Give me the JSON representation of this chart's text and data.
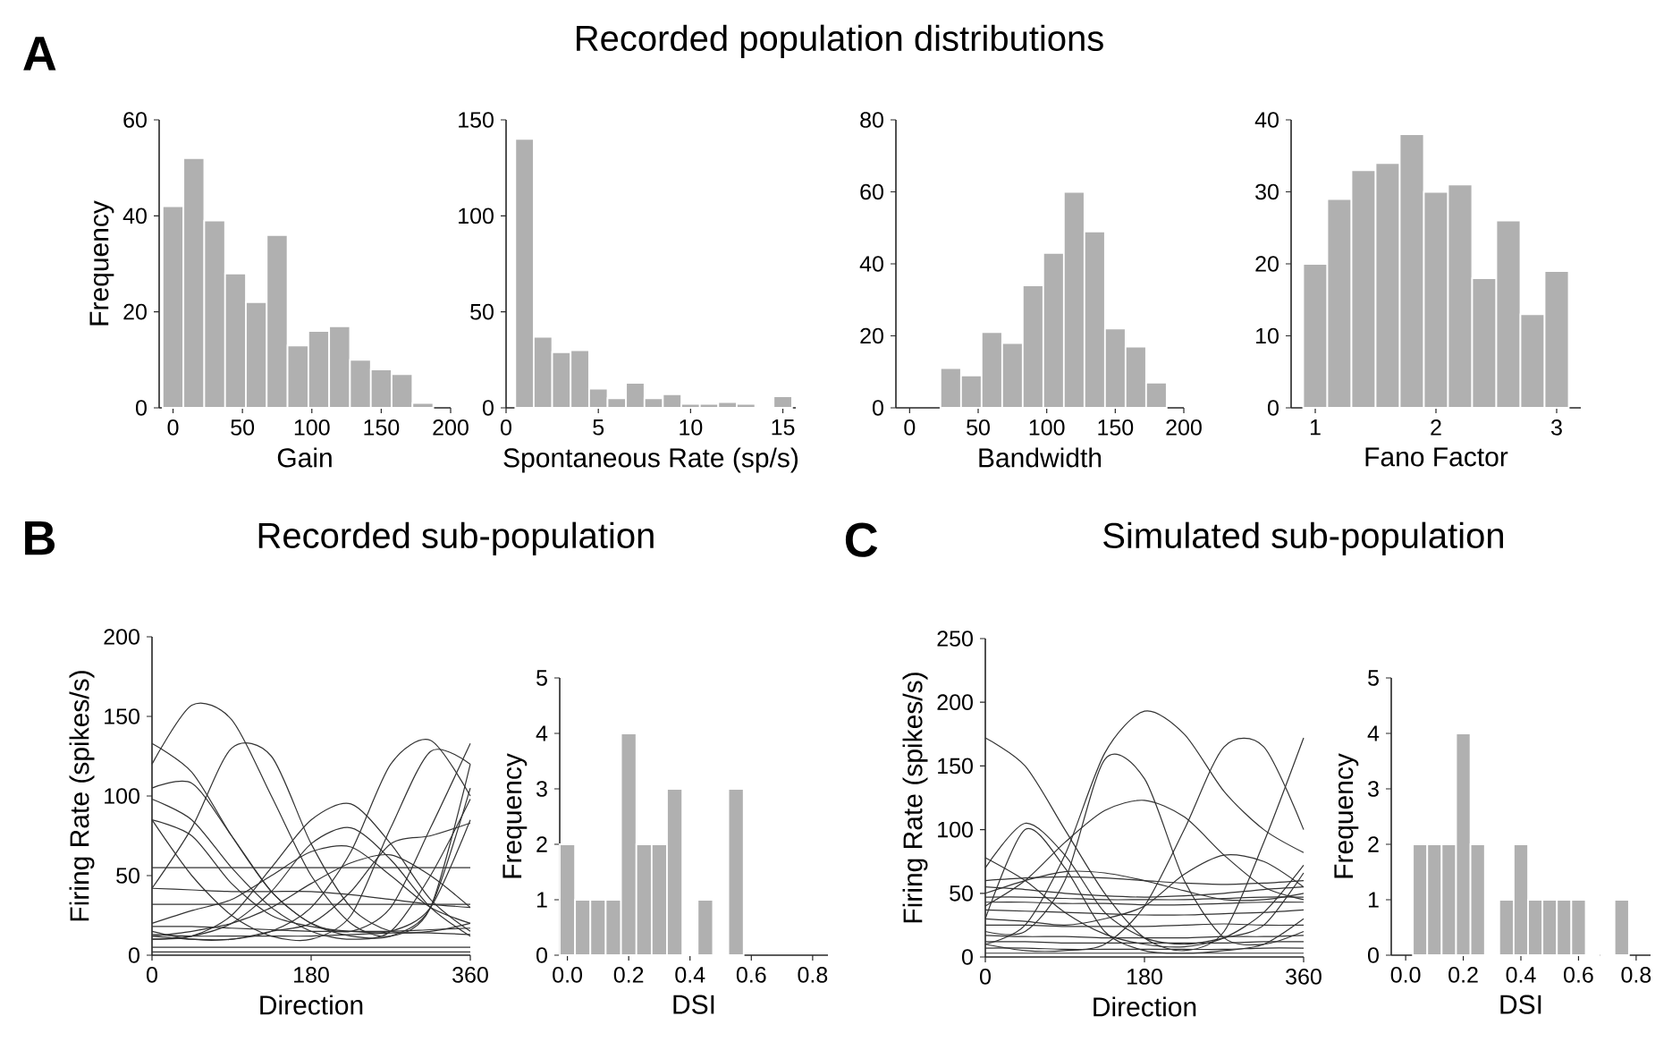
{
  "chart_data": [
    {
      "type": "histogram",
      "annotations": [
        "A"
      ],
      "xlabel": "Gain",
      "ylabel": "Frequency",
      "color": "#b0b0b0",
      "bins": [
        -7.5,
        7.5,
        22.5,
        37.5,
        52.5,
        67.5,
        82.5,
        97.5,
        112.5,
        127.5,
        142.5,
        157.5,
        172.5,
        187.5
      ],
      "values": [
        42,
        52,
        39,
        28,
        22,
        36,
        13,
        16,
        17,
        10,
        8,
        7,
        1
      ],
      "xlim": [
        -10,
        200
      ],
      "xticks": [
        0,
        50,
        100,
        150,
        200
      ],
      "ylim": [
        0,
        60
      ],
      "yticks": [
        0,
        20,
        40,
        60
      ]
    },
    {
      "type": "histogram",
      "title": "Recorded population distributions",
      "xlabel": "Spontaneous Rate (sp/s)",
      "color": "#b0b0b0",
      "bins": [
        0.5,
        1.5,
        2.5,
        3.5,
        4.5,
        5.5,
        6.5,
        7.5,
        8.5,
        9.5,
        10.5,
        11.5,
        12.5,
        13.5,
        14.5,
        15.5
      ],
      "values": [
        140,
        37,
        29,
        30,
        10,
        5,
        13,
        5,
        7,
        2,
        2,
        3,
        2,
        0,
        6
      ],
      "xlim": [
        0,
        15.7
      ],
      "xticks": [
        0,
        5,
        10,
        15
      ],
      "ylim": [
        0,
        150
      ],
      "yticks": [
        0,
        50,
        100,
        150
      ]
    },
    {
      "type": "histogram",
      "xlabel": "Bandwidth",
      "color": "#b0b0b0",
      "bins": [
        22.5,
        37.5,
        52.5,
        67.5,
        82.5,
        97.5,
        112.5,
        127.5,
        142.5,
        157.5,
        172.5,
        187.5
      ],
      "values": [
        11,
        9,
        21,
        18,
        34,
        43,
        60,
        49,
        22,
        17,
        7
      ],
      "xlim": [
        -10,
        200
      ],
      "xticks": [
        0,
        50,
        100,
        150,
        200
      ],
      "ylim": [
        0,
        80
      ],
      "yticks": [
        0,
        20,
        40,
        60,
        80
      ]
    },
    {
      "type": "histogram",
      "xlabel": "Fano Factor",
      "color": "#b0b0b0",
      "bins": [
        0.9,
        1.1,
        1.3,
        1.5,
        1.7,
        1.9,
        2.1,
        2.3,
        2.5,
        2.7,
        2.9,
        3.1
      ],
      "values": [
        20,
        29,
        33,
        34,
        38,
        30,
        31,
        18,
        26,
        13,
        19
      ],
      "xlim": [
        0.8,
        3.2
      ],
      "xticks": [
        1,
        2,
        3
      ],
      "ylim": [
        0,
        40
      ],
      "yticks": [
        0,
        10,
        20,
        30,
        40
      ]
    },
    {
      "type": "line",
      "title": "Recorded sub-population",
      "annotations": [
        "B"
      ],
      "xlabel": "Direction",
      "ylabel": "Firing Rate (spikes/s)",
      "color": "#333333",
      "line_style": "solid",
      "x": [
        0,
        45,
        90,
        135,
        180,
        225,
        270,
        315,
        360
      ],
      "xlim": [
        0,
        360
      ],
      "xticks": [
        0,
        180,
        360
      ],
      "ylim": [
        0,
        200
      ],
      "yticks": [
        0,
        50,
        100,
        150,
        200
      ],
      "series": [
        {
          "values": [
            133,
            115,
            75,
            40,
            20,
            15,
            30,
            80,
            133
          ]
        },
        {
          "values": [
            120,
            157,
            148,
            100,
            50,
            20,
            12,
            30,
            120
          ]
        },
        {
          "values": [
            42,
            80,
            130,
            125,
            70,
            30,
            15,
            15,
            20
          ]
        },
        {
          "values": [
            105,
            108,
            75,
            40,
            20,
            12,
            12,
            30,
            105
          ]
        },
        {
          "values": [
            15,
            10,
            10,
            15,
            30,
            65,
            120,
            135,
            100
          ]
        },
        {
          "values": [
            85,
            50,
            25,
            12,
            10,
            25,
            80,
            128,
            120
          ]
        },
        {
          "values": [
            10,
            12,
            25,
            55,
            85,
            95,
            70,
            35,
            15
          ]
        },
        {
          "values": [
            20,
            28,
            35,
            50,
            65,
            68,
            50,
            30,
            20
          ]
        },
        {
          "values": [
            10,
            12,
            20,
            40,
            70,
            80,
            60,
            30,
            12
          ]
        },
        {
          "values": [
            98,
            85,
            55,
            30,
            15,
            10,
            15,
            50,
            98
          ]
        },
        {
          "values": [
            85,
            75,
            45,
            25,
            18,
            15,
            15,
            30,
            85
          ]
        },
        {
          "values": [
            12,
            15,
            20,
            30,
            45,
            58,
            63,
            50,
            30
          ]
        },
        {
          "values": [
            12,
            10,
            10,
            15,
            20,
            40,
            70,
            75,
            83
          ]
        },
        {
          "values": [
            55,
            55,
            55,
            55,
            55,
            55,
            55,
            55,
            55
          ]
        },
        {
          "values": [
            42,
            41,
            40,
            40,
            40,
            38,
            35,
            32,
            30
          ]
        },
        {
          "values": [
            32,
            32,
            32,
            32,
            32,
            32,
            32,
            32,
            32
          ]
        },
        {
          "values": [
            18,
            18,
            17,
            16,
            15,
            15,
            15,
            16,
            17
          ]
        },
        {
          "values": [
            13,
            12,
            12,
            12,
            12,
            13,
            14,
            14,
            13
          ]
        },
        {
          "values": [
            5,
            5,
            5,
            5,
            5,
            5,
            5,
            5,
            5
          ]
        },
        {
          "values": [
            2,
            2,
            2,
            2,
            2,
            2,
            2,
            2,
            2
          ]
        }
      ]
    },
    {
      "type": "histogram",
      "xlabel": "DSI",
      "ylabel": "Frequency",
      "color": "#b0b0b0",
      "bins": [
        -0.025,
        0.025,
        0.075,
        0.125,
        0.175,
        0.225,
        0.275,
        0.325,
        0.375,
        0.425,
        0.475,
        0.525,
        0.575
      ],
      "values": [
        2,
        1,
        1,
        1,
        4,
        2,
        2,
        3,
        0,
        1,
        0,
        3
      ],
      "xlim": [
        -0.025,
        0.85
      ],
      "xticks": [
        {
          "value": 0,
          "label": "0.0"
        },
        0.2,
        0.4,
        0.6,
        0.8
      ],
      "ylim": [
        0,
        5
      ],
      "yticks": [
        0,
        1,
        2,
        3,
        4,
        5
      ]
    },
    {
      "type": "line",
      "title": "Simulated sub-population",
      "annotations": [
        "C"
      ],
      "xlabel": "Direction",
      "ylabel": "Firing Rate (spikes/s)",
      "color": "#333333",
      "line_style": "solid",
      "x": [
        0,
        45,
        90,
        135,
        180,
        225,
        270,
        315,
        360
      ],
      "xlim": [
        0,
        360
      ],
      "xticks": [
        0,
        180,
        360
      ],
      "ylim": [
        0,
        250
      ],
      "yticks": [
        0,
        50,
        100,
        150,
        200,
        250
      ],
      "series": [
        {
          "values": [
            172,
            150,
            100,
            50,
            15,
            5,
            20,
            90,
            172
          ]
        },
        {
          "values": [
            10,
            25,
            80,
            160,
            193,
            175,
            130,
            100,
            82
          ]
        },
        {
          "values": [
            20,
            20,
            60,
            155,
            140,
            60,
            15,
            10,
            20
          ]
        },
        {
          "values": [
            10,
            5,
            5,
            10,
            40,
            100,
            165,
            165,
            100
          ]
        },
        {
          "values": [
            40,
            60,
            90,
            115,
            123,
            110,
            80,
            55,
            45
          ]
        },
        {
          "values": [
            70,
            105,
            80,
            35,
            15,
            10,
            15,
            25,
            66
          ]
        },
        {
          "values": [
            30,
            100,
            70,
            20,
            5,
            3,
            5,
            10,
            30
          ]
        },
        {
          "values": [
            30,
            28,
            25,
            30,
            40,
            65,
            80,
            75,
            55
          ]
        },
        {
          "values": [
            78,
            60,
            35,
            18,
            10,
            8,
            15,
            35,
            72
          ]
        },
        {
          "values": [
            50,
            60,
            67,
            66,
            60,
            52,
            45,
            45,
            50
          ]
        },
        {
          "values": [
            60,
            62,
            63,
            62,
            60,
            58,
            57,
            58,
            60
          ]
        },
        {
          "values": [
            55,
            53,
            50,
            48,
            47,
            48,
            50,
            53,
            55
          ]
        },
        {
          "values": [
            47,
            47,
            46,
            45,
            45,
            45,
            46,
            47,
            47
          ]
        },
        {
          "values": [
            43,
            43,
            42,
            42,
            41,
            41,
            42,
            43,
            43
          ]
        },
        {
          "values": [
            37,
            36,
            35,
            34,
            33,
            33,
            34,
            35,
            37
          ]
        },
        {
          "values": [
            25,
            25,
            24,
            24,
            24,
            25,
            26,
            25,
            25
          ]
        },
        {
          "values": [
            17,
            16,
            16,
            15,
            15,
            15,
            16,
            16,
            17
          ]
        },
        {
          "values": [
            12,
            12,
            11,
            11,
            11,
            11,
            11,
            12,
            12
          ]
        },
        {
          "values": [
            7,
            7,
            6,
            6,
            6,
            6,
            6,
            7,
            7
          ]
        },
        {
          "values": [
            3,
            3,
            3,
            3,
            3,
            3,
            3,
            3,
            3
          ]
        }
      ]
    },
    {
      "type": "histogram",
      "xlabel": "DSI",
      "ylabel": "Frequency",
      "color": "#b0b0b0",
      "bins": [
        0.025,
        0.075,
        0.125,
        0.175,
        0.225,
        0.275,
        0.325,
        0.375,
        0.425,
        0.475,
        0.525,
        0.575,
        0.625,
        0.675,
        0.725,
        0.775
      ],
      "values": [
        2,
        2,
        2,
        4,
        2,
        0,
        1,
        2,
        1,
        1,
        1,
        1,
        0,
        0,
        1
      ],
      "xlim": [
        -0.05,
        0.85
      ],
      "xticks": [
        {
          "value": 0,
          "label": "0.0"
        },
        0.2,
        0.4,
        0.6,
        0.8
      ],
      "ylim": [
        0,
        5
      ],
      "yticks": [
        0,
        1,
        2,
        3,
        4,
        5
      ]
    }
  ]
}
